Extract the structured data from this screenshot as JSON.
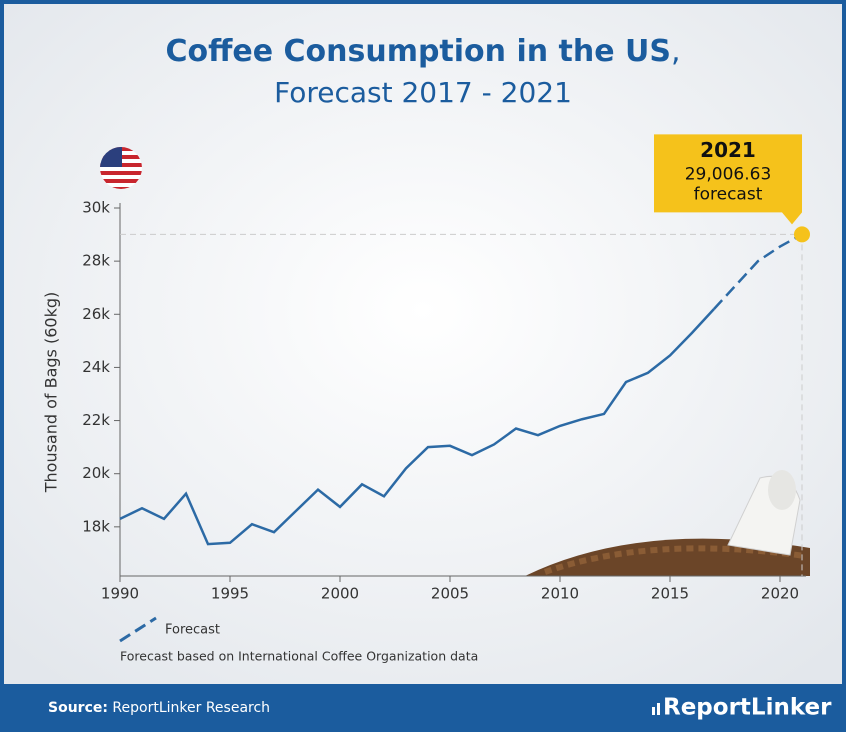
{
  "chart_data": {
    "type": "line",
    "title": "Coffee Consumption in the US",
    "title_suffix": ",",
    "subtitle": "Forecast 2017 - 2021",
    "y_label": "Thousand of Bags (60kg)",
    "x": [
      1990,
      1991,
      1992,
      1993,
      1994,
      1995,
      1996,
      1997,
      1998,
      1999,
      2000,
      2001,
      2002,
      2003,
      2004,
      2005,
      2006,
      2007,
      2008,
      2009,
      2010,
      2011,
      2012,
      2013,
      2014,
      2015,
      2016,
      2017,
      2018,
      2019,
      2020,
      2021
    ],
    "series": [
      {
        "color": "#2c6aa5",
        "values": [
          18300,
          18700,
          18300,
          19250,
          17350,
          17400,
          18100,
          17800,
          18600,
          19400,
          18750,
          19600,
          19150,
          20200,
          21000,
          21050,
          20700,
          21100,
          21700,
          21450,
          21800,
          22050,
          22250,
          23450,
          23800,
          24450,
          25300,
          26200,
          null,
          null,
          null,
          null
        ]
      },
      {
        "name": "Forecast",
        "color": "#2c6aa5",
        "dashed": true,
        "values": [
          null,
          null,
          null,
          null,
          null,
          null,
          null,
          null,
          null,
          null,
          null,
          null,
          null,
          null,
          null,
          null,
          null,
          null,
          null,
          null,
          null,
          null,
          null,
          null,
          null,
          null,
          null,
          26200,
          27100,
          28000,
          28550,
          29006.63
        ],
        "value_labels": [
          null,
          null,
          null,
          null,
          null,
          null,
          null,
          null,
          null,
          null,
          null,
          null,
          null,
          null,
          null,
          null,
          null,
          null,
          null,
          null,
          null,
          null,
          null,
          null,
          null,
          null,
          null,
          null,
          null,
          null,
          null,
          "29,006.63"
        ]
      }
    ],
    "xlim": [
      1990,
      2021
    ],
    "xticks": [
      1990,
      1995,
      2000,
      2005,
      2010,
      2015,
      2020
    ],
    "ylim": [
      16150,
      30000
    ],
    "yticks": [
      {
        "value": 18000,
        "label": "18k"
      },
      {
        "value": 20000,
        "label": "20k"
      },
      {
        "value": 22000,
        "label": "22k"
      },
      {
        "value": 24000,
        "label": "24k"
      },
      {
        "value": 26000,
        "label": "26k"
      },
      {
        "value": 28000,
        "label": "28k"
      },
      {
        "value": 30000,
        "label": "30k"
      }
    ],
    "annotation": {
      "title": "2021",
      "note": "forecast",
      "color": "#f5c21b"
    },
    "footnote": "Forecast based on International Coffee Organization data",
    "source_label": "Source:",
    "source": "ReportLinker Research",
    "brand": "ReportLinker"
  }
}
